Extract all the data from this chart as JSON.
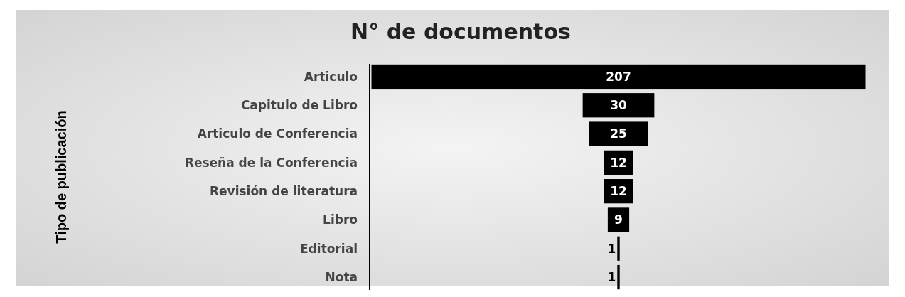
{
  "chart_data": {
    "type": "other",
    "title": "N° de documentos",
    "ylabel": "Tipo de publicación",
    "categories": [
      "Articulo",
      "Capitulo de Libro",
      "Articulo de Conferencia",
      "Reseña de la Conferencia",
      "Revisión de literatura",
      "Libro",
      "Editorial",
      "Nota"
    ],
    "values": [
      207,
      30,
      25,
      12,
      12,
      9,
      1,
      1
    ],
    "color": "#000000",
    "data_labels": true
  }
}
